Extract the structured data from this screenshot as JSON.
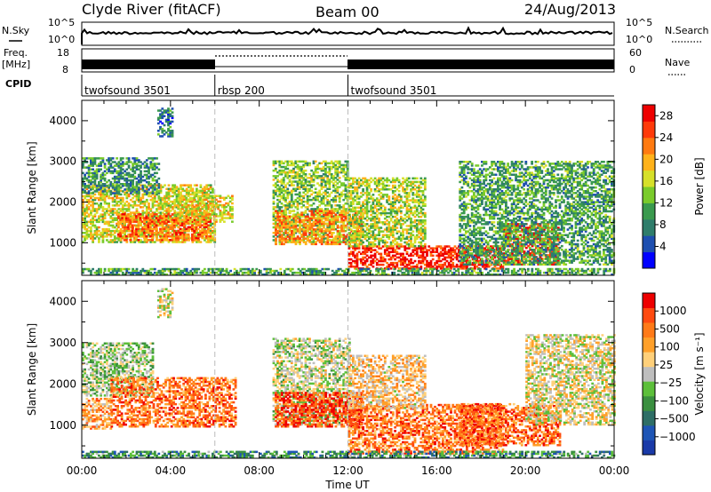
{
  "header": {
    "station": "Clyde River (fitACF)",
    "beam": "Beam 00",
    "date": "24/Aug/2013"
  },
  "aux": {
    "nsky_label": "N.Sky",
    "nsky_ticks": [
      "10^5",
      "10^0"
    ],
    "nsearch_label": "N.Search",
    "nsearch_ticks": [
      "10^5",
      "10^0"
    ],
    "freq_label": "Freq.",
    "freq_unit": "[MHz]",
    "freq_ticks": [
      "18",
      "8"
    ],
    "nave_label": "Nave",
    "nave_ticks": [
      "60",
      "0"
    ],
    "cpid_label": "CPID",
    "cpid_segments": [
      {
        "label": "twofsound 3501",
        "start_hour": 0,
        "end_hour": 6
      },
      {
        "label": "rbsp 200",
        "start_hour": 6,
        "end_hour": 12
      },
      {
        "label": "twofsound 3501",
        "start_hour": 12,
        "end_hour": 24
      }
    ]
  },
  "chart_data": [
    {
      "type": "heatmap",
      "name": "power-panel",
      "ylabel": "Slant Range [km]",
      "yticks": [
        "1000",
        "2000",
        "3000",
        "4000"
      ],
      "ylim": [
        200,
        4500
      ],
      "xlim": [
        0,
        24
      ],
      "colorbar": {
        "label": "Power [dB]",
        "ticks": [
          "4",
          "8",
          "12",
          "16",
          "20",
          "24",
          "28"
        ],
        "range": [
          0,
          30
        ],
        "colors": [
          "#0000ff",
          "#1e4fb0",
          "#2f7d6b",
          "#3a9a4e",
          "#7acb2b",
          "#d6e02a",
          "#ffb21a",
          "#ff7a10",
          "#ff3a0a",
          "#ee0000"
        ]
      },
      "regions": [
        {
          "t0": 0.0,
          "t1": 6.0,
          "r0": 1000,
          "r1": 2400,
          "level": 0.55
        },
        {
          "t0": 1.6,
          "t1": 5.8,
          "r0": 1050,
          "r1": 1700,
          "level": 0.78
        },
        {
          "t0": 4.3,
          "t1": 6.8,
          "r0": 1500,
          "r1": 2150,
          "level": 0.6
        },
        {
          "t0": 0.0,
          "t1": 3.5,
          "r0": 2200,
          "r1": 3100,
          "level": 0.3
        },
        {
          "t0": 3.4,
          "t1": 4.1,
          "r0": 3600,
          "r1": 4300,
          "level": 0.25
        },
        {
          "t0": 8.6,
          "t1": 12.0,
          "r0": 1000,
          "r1": 3000,
          "level": 0.45
        },
        {
          "t0": 8.7,
          "t1": 12.6,
          "r0": 950,
          "r1": 1800,
          "level": 0.72
        },
        {
          "t0": 12.0,
          "t1": 19.0,
          "r0": 350,
          "r1": 900,
          "level": 0.92
        },
        {
          "t0": 12.0,
          "t1": 15.5,
          "r0": 900,
          "r1": 2600,
          "level": 0.5
        },
        {
          "t0": 19.0,
          "t1": 21.5,
          "r0": 450,
          "r1": 1450,
          "level": 0.9
        },
        {
          "t0": 17.0,
          "t1": 24.0,
          "r0": 450,
          "r1": 3000,
          "level": 0.35
        },
        {
          "t0": 0.0,
          "t1": 24.0,
          "r0": 200,
          "r1": 350,
          "level": 0.35
        }
      ]
    },
    {
      "type": "heatmap",
      "name": "velocity-panel",
      "ylabel": "Slant Range [km]",
      "yticks": [
        "1000",
        "2000",
        "3000",
        "4000"
      ],
      "ylim": [
        200,
        4500
      ],
      "xlim": [
        0,
        24
      ],
      "colorbar": {
        "label": "Velocity [m s⁻¹]",
        "ticks": [
          "1000",
          "500",
          "100",
          "25",
          "−25",
          "−100",
          "−500",
          "−1000"
        ],
        "colors": [
          "#1a3aa8",
          "#1e55b5",
          "#2e6e66",
          "#3a8f3f",
          "#5cbf3a",
          "#bebebe",
          "#ffd07a",
          "#ffa02a",
          "#ff7a18",
          "#ff4a10",
          "#ee0000"
        ]
      },
      "regions": [
        {
          "t0": 0.0,
          "t1": 3.2,
          "r0": 1700,
          "r1": 3000,
          "level": 0.45
        },
        {
          "t0": 0.0,
          "t1": 1.3,
          "r0": 900,
          "r1": 1650,
          "level": 0.7
        },
        {
          "t0": 1.3,
          "t1": 6.9,
          "r0": 950,
          "r1": 2150,
          "level": 0.78
        },
        {
          "t0": 3.4,
          "t1": 4.1,
          "r0": 3600,
          "r1": 4300,
          "level": 0.55
        },
        {
          "t0": 8.6,
          "t1": 12.1,
          "r0": 1000,
          "r1": 3100,
          "level": 0.5
        },
        {
          "t0": 8.7,
          "t1": 12.6,
          "r0": 950,
          "r1": 1800,
          "level": 0.88
        },
        {
          "t0": 12.0,
          "t1": 19.0,
          "r0": 300,
          "r1": 1500,
          "level": 0.78
        },
        {
          "t0": 12.0,
          "t1": 15.5,
          "r0": 1400,
          "r1": 2700,
          "level": 0.62
        },
        {
          "t0": 17.0,
          "t1": 21.5,
          "r0": 500,
          "r1": 1500,
          "level": 0.8
        },
        {
          "t0": 20.0,
          "t1": 24.0,
          "r0": 1000,
          "r1": 3200,
          "level": 0.55
        },
        {
          "t0": 0.0,
          "t1": 24.0,
          "r0": 200,
          "r1": 350,
          "level": 0.3
        }
      ]
    }
  ],
  "xaxis": {
    "ticks": [
      "00:00",
      "04:00",
      "08:00",
      "12:00",
      "16:00",
      "20:00",
      "00:00"
    ],
    "label": "Time UT"
  }
}
